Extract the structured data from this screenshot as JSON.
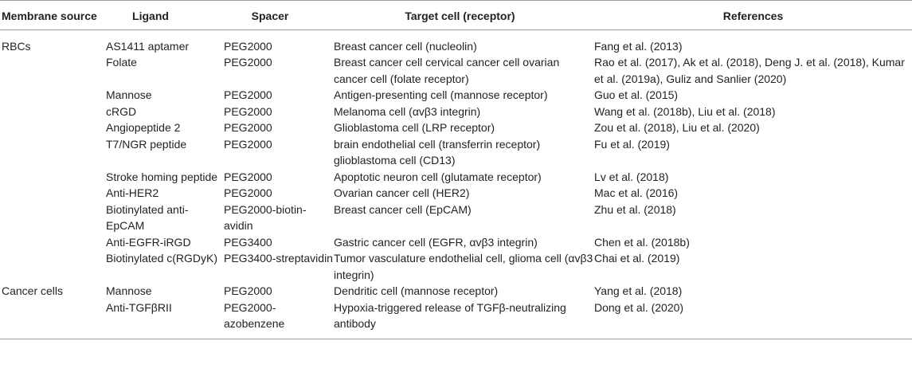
{
  "headers": {
    "membrane_source": "Membrane source",
    "ligand": "Ligand",
    "spacer": "Spacer",
    "target_cell": "Target cell (receptor)",
    "references": "References"
  },
  "rows": [
    {
      "source": "RBCs",
      "ligand": "AS1411 aptamer",
      "spacer": "PEG2000",
      "target": "Breast cancer cell (nucleolin)",
      "refs": "Fang et al. (2013)"
    },
    {
      "source": "",
      "ligand": "Folate",
      "spacer": "PEG2000",
      "target": "Breast cancer cell cervical cancer cell ovarian cancer cell (folate receptor)",
      "refs": "Rao et al. (2017), Ak et al. (2018), Deng J. et al. (2018), Kumar et al. (2019a), Guliz and Sanlier (2020)"
    },
    {
      "source": "",
      "ligand": "Mannose",
      "spacer": "PEG2000",
      "target": "Antigen-presenting cell (mannose receptor)",
      "refs": "Guo et al. (2015)"
    },
    {
      "source": "",
      "ligand": "cRGD",
      "spacer": "PEG2000",
      "target": "Melanoma cell (αvβ3 integrin)",
      "refs": "Wang et al. (2018b), Liu et al. (2018)"
    },
    {
      "source": "",
      "ligand": "Angiopeptide 2",
      "spacer": "PEG2000",
      "target": "Glioblastoma cell (LRP receptor)",
      "refs": "Zou et al. (2018), Liu et al. (2020)"
    },
    {
      "source": "",
      "ligand": "T7/NGR peptide",
      "spacer": "PEG2000",
      "target": "brain endothelial cell (transferrin receptor) glioblastoma cell (CD13)",
      "refs": "Fu et al. (2019)"
    },
    {
      "source": "",
      "ligand": "Stroke homing peptide",
      "spacer": "PEG2000",
      "target": "Apoptotic neuron cell (glutamate receptor)",
      "refs": "Lv et al. (2018)"
    },
    {
      "source": "",
      "ligand": "Anti-HER2",
      "spacer": "PEG2000",
      "target": "Ovarian cancer cell (HER2)",
      "refs": "Mac et al. (2016)"
    },
    {
      "source": "",
      "ligand": "Biotinylated anti-EpCAM",
      "spacer": "PEG2000-biotin-avidin",
      "target": "Breast cancer cell (EpCAM)",
      "refs": "Zhu et al. (2018)"
    },
    {
      "source": "",
      "ligand": "Anti-EGFR-iRGD",
      "spacer": "PEG3400",
      "target": "Gastric cancer cell (EGFR, αvβ3 integrin)",
      "refs": "Chen et al. (2018b)"
    },
    {
      "source": "",
      "ligand": "Biotinylated c(RGDyK)",
      "spacer": "PEG3400-streptavidin",
      "target": "Tumor vasculature endothelial cell, glioma cell (αvβ3 integrin)",
      "refs": "Chai et al. (2019)"
    },
    {
      "source": "Cancer cells",
      "ligand": "Mannose",
      "spacer": "PEG2000",
      "target": "Dendritic cell (mannose receptor)",
      "refs": "Yang et al. (2018)"
    },
    {
      "source": "",
      "ligand": "Anti-TGFβRII",
      "spacer": "PEG2000-azobenzene",
      "target": "Hypoxia-triggered release of TGFβ-neutralizing antibody",
      "refs": "Dong et al. (2020)"
    }
  ]
}
